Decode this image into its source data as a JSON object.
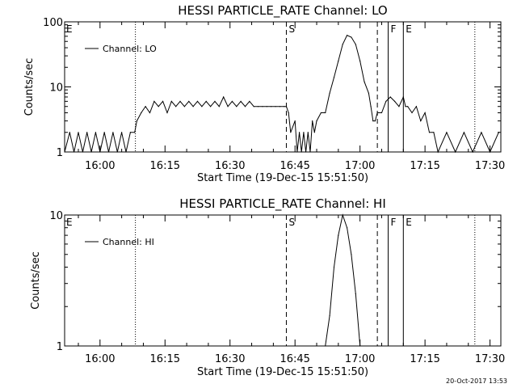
{
  "footer": {
    "timestamp": "20-Oct-2017 13:53"
  },
  "chart_data": [
    {
      "type": "line",
      "title": "HESSI PARTICLE_RATE Channel: LO",
      "xlabel": "Start Time (19-Dec-15 15:51:50)",
      "ylabel": "Counts/sec",
      "yscale": "log",
      "ylim": [
        1,
        100
      ],
      "xlim": [
        "15:51:50",
        "17:32:30"
      ],
      "x_tick_labels": [
        "16:00",
        "16:15",
        "16:30",
        "16:45",
        "17:00",
        "17:15",
        "17:30"
      ],
      "y_tick_labels": [
        "1",
        "10",
        "100"
      ],
      "y_ticks": [
        1,
        10,
        100
      ],
      "legend": {
        "position": "top-left",
        "entries": [
          "Channel: LO"
        ]
      },
      "markers": [
        {
          "label": "E",
          "time": "15:51:50",
          "style": "none"
        },
        {
          "label": "",
          "time": "16:08:10",
          "style": "dotted"
        },
        {
          "label": "S",
          "time": "16:43:00",
          "style": "dashed"
        },
        {
          "label": "",
          "time": "17:04:00",
          "style": "dashed"
        },
        {
          "label": "F",
          "time": "17:06:30",
          "style": "solid"
        },
        {
          "label": "E",
          "time": "17:10:00",
          "style": "solid"
        },
        {
          "label": "",
          "time": "17:26:30",
          "style": "dotted"
        }
      ],
      "series": [
        {
          "name": "Channel: LO",
          "x": [
            "15:51:50",
            "15:53:00",
            "15:54:00",
            "15:55:00",
            "15:56:00",
            "15:57:00",
            "15:58:00",
            "15:59:00",
            "16:00:00",
            "16:01:00",
            "16:02:00",
            "16:03:00",
            "16:04:00",
            "16:05:00",
            "16:06:00",
            "16:07:00",
            "16:08:00",
            "16:08:30",
            "16:09:30",
            "16:10:30",
            "16:11:30",
            "16:12:30",
            "16:13:30",
            "16:14:30",
            "16:15:30",
            "16:16:30",
            "16:17:30",
            "16:18:30",
            "16:19:30",
            "16:20:30",
            "16:21:30",
            "16:22:30",
            "16:23:30",
            "16:24:30",
            "16:25:30",
            "16:26:30",
            "16:27:30",
            "16:28:30",
            "16:29:30",
            "16:30:30",
            "16:31:30",
            "16:32:30",
            "16:33:30",
            "16:34:30",
            "16:35:30",
            "16:36:30",
            "16:37:30",
            "16:38:30",
            "16:39:30",
            "16:40:30",
            "16:41:30",
            "16:42:30",
            "16:43:00",
            "16:43:30",
            "16:44:00",
            "16:45:00",
            "16:45:30",
            "16:46:00",
            "16:46:30",
            "16:47:00",
            "16:47:30",
            "16:48:00",
            "16:48:30",
            "16:49:00",
            "16:49:30",
            "16:50:00",
            "16:51:00",
            "16:52:00",
            "16:53:00",
            "16:54:00",
            "16:55:00",
            "16:56:00",
            "16:57:00",
            "16:58:00",
            "16:59:00",
            "17:00:00",
            "17:01:00",
            "17:02:00",
            "17:02:30",
            "17:03:00",
            "17:03:30",
            "17:04:00",
            "17:05:00",
            "17:06:00",
            "17:07:00",
            "17:08:00",
            "17:09:00",
            "17:10:00",
            "17:10:30",
            "17:11:00",
            "17:12:00",
            "17:13:00",
            "17:14:00",
            "17:15:00",
            "17:16:00",
            "17:17:00",
            "17:18:00",
            "17:20:00",
            "17:22:00",
            "17:24:00",
            "17:26:00",
            "17:28:00",
            "17:30:00",
            "17:32:00"
          ],
          "y": [
            1,
            2,
            1,
            2,
            1,
            2,
            1,
            2,
            1,
            2,
            1,
            2,
            1,
            2,
            1,
            2,
            2,
            3,
            4,
            5,
            4,
            6,
            5,
            6,
            4,
            6,
            5,
            6,
            5,
            6,
            5,
            6,
            5,
            6,
            5,
            6,
            5,
            7,
            5,
            6,
            5,
            6,
            5,
            6,
            5,
            5,
            5,
            5,
            5,
            5,
            5,
            5,
            5,
            4,
            2,
            3,
            1,
            2,
            1,
            2,
            1,
            2,
            1,
            3,
            2,
            3,
            4,
            4,
            8,
            14,
            25,
            45,
            62,
            58,
            45,
            25,
            12,
            8,
            5,
            3,
            3,
            4,
            4,
            6,
            7,
            6,
            5,
            7,
            5,
            5,
            4,
            5,
            3,
            4,
            2,
            2,
            1,
            2,
            1,
            2,
            1,
            2,
            1,
            2
          ]
        }
      ]
    },
    {
      "type": "line",
      "title": "HESSI PARTICLE_RATE Channel: HI",
      "xlabel": "Start Time (19-Dec-15 15:51:50)",
      "ylabel": "Counts/sec",
      "yscale": "log",
      "ylim": [
        1,
        10
      ],
      "xlim": [
        "15:51:50",
        "17:32:30"
      ],
      "x_tick_labels": [
        "16:00",
        "16:15",
        "16:30",
        "16:45",
        "17:00",
        "17:15",
        "17:30"
      ],
      "y_tick_labels": [
        "1",
        "10"
      ],
      "y_ticks": [
        1,
        10
      ],
      "legend": {
        "position": "top-left",
        "entries": [
          "Channel: HI"
        ]
      },
      "markers": [
        {
          "label": "E",
          "time": "15:51:50",
          "style": "none"
        },
        {
          "label": "",
          "time": "16:08:10",
          "style": "dotted"
        },
        {
          "label": "S",
          "time": "16:43:00",
          "style": "dashed"
        },
        {
          "label": "",
          "time": "17:04:00",
          "style": "dashed"
        },
        {
          "label": "F",
          "time": "17:06:30",
          "style": "solid"
        },
        {
          "label": "E",
          "time": "17:10:00",
          "style": "solid"
        },
        {
          "label": "",
          "time": "17:26:30",
          "style": "dotted"
        }
      ],
      "series": [
        {
          "name": "Channel: HI",
          "x": [
            "16:52:00",
            "16:53:00",
            "16:54:00",
            "16:55:00",
            "16:56:00",
            "16:57:00",
            "16:58:00",
            "16:59:00",
            "17:00:00"
          ],
          "y": [
            1,
            1.7,
            4,
            7,
            10,
            8,
            5,
            2.5,
            1
          ]
        }
      ]
    }
  ]
}
